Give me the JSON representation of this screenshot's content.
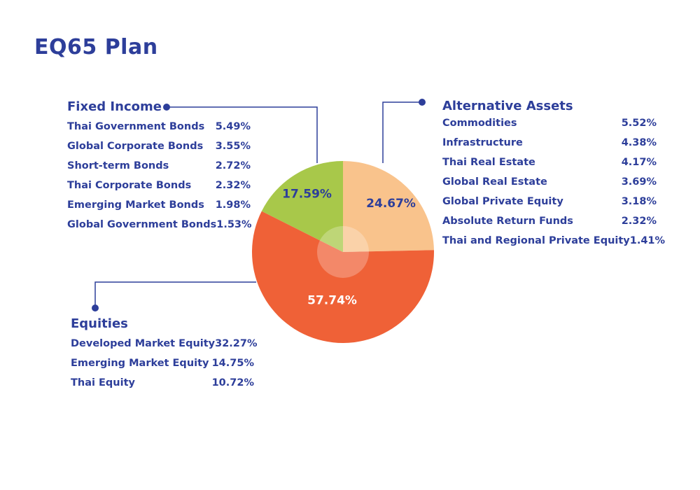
{
  "title": "EQ65 Plan",
  "colors": {
    "fixed_income": "#a8c84a",
    "alternative_assets": "#f9c38c",
    "equities": "#ef6137",
    "text": "#2d3e9a",
    "connector": "#2d3e9a"
  },
  "chart_data": {
    "type": "pie",
    "slices": [
      {
        "name": "Alternative Assets",
        "value": 24.67,
        "label": "24.67%",
        "color": "#f9c38c"
      },
      {
        "name": "Equities",
        "value": 57.74,
        "label": "57.74%",
        "color": "#ef6137"
      },
      {
        "name": "Fixed Income",
        "value": 17.59,
        "label": "17.59%",
        "color": "#a8c84a"
      }
    ]
  },
  "groups": {
    "fixed_income": {
      "title": "Fixed Income",
      "items": [
        {
          "label": "Thai Government Bonds",
          "value": "5.49%"
        },
        {
          "label": "Global Corporate Bonds",
          "value": "3.55%"
        },
        {
          "label": "Short-term Bonds",
          "value": "2.72%"
        },
        {
          "label": "Thai Corporate Bonds",
          "value": "2.32%"
        },
        {
          "label": "Emerging Market Bonds",
          "value": "1.98%"
        },
        {
          "label": "Global Government Bonds",
          "value": "1.53%"
        }
      ]
    },
    "alternative_assets": {
      "title": "Alternative Assets",
      "items": [
        {
          "label": "Commodities",
          "value": "5.52%"
        },
        {
          "label": "Infrastructure",
          "value": "4.38%"
        },
        {
          "label": "Thai Real Estate",
          "value": "4.17%"
        },
        {
          "label": "Global Real Estate",
          "value": "3.69%"
        },
        {
          "label": "Global Private Equity",
          "value": "3.18%"
        },
        {
          "label": "Absolute Return Funds",
          "value": "2.32%"
        },
        {
          "label": "Thai and Regional Private Equity",
          "value": "1.41%"
        }
      ]
    },
    "equities": {
      "title": "Equities",
      "items": [
        {
          "label": "Developed Market Equity",
          "value": "32.27%"
        },
        {
          "label": "Emerging Market Equity",
          "value": "14.75%"
        },
        {
          "label": "Thai Equity",
          "value": "10.72%"
        }
      ]
    }
  }
}
